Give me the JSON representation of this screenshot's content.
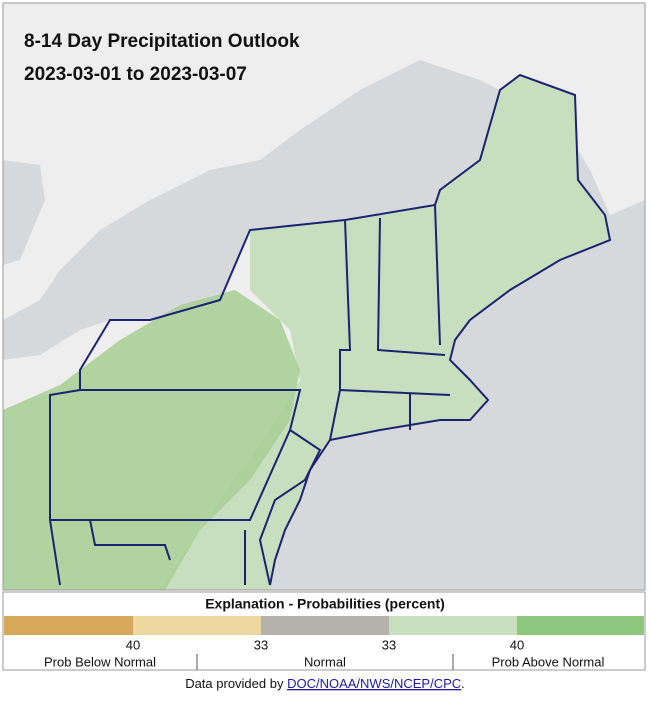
{
  "map": {
    "title": "8-14 Day Precipitation Outlook",
    "date_range": "2023-03-01 to 2023-03-07"
  },
  "legend": {
    "title": "Explanation - Probabilities (percent)",
    "ticks": [
      "40",
      "33",
      "33",
      "40"
    ],
    "categories": [
      "Prob Below Normal",
      "Normal",
      "Prob Above Normal"
    ]
  },
  "footer": {
    "prefix": "Data provided by",
    "link": "DOC/NOAA/NWS/NCEP/CPC",
    "suffix": "."
  }
}
